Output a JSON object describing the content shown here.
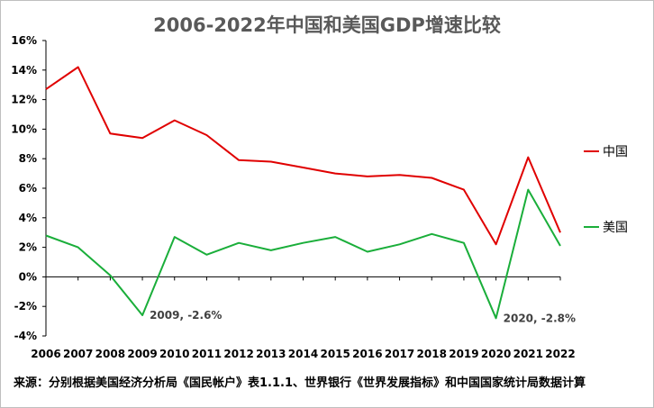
{
  "chart_data": {
    "type": "line",
    "title": "2006-2022年中国和美国GDP增速比较",
    "xlabel": "",
    "ylabel": "",
    "categories": [
      "2006",
      "2007",
      "2008",
      "2009",
      "2010",
      "2011",
      "2012",
      "2013",
      "2014",
      "2015",
      "2016",
      "2017",
      "2018",
      "2019",
      "2020",
      "2021",
      "2022"
    ],
    "ylim": [
      -4,
      16
    ],
    "yticks": [
      "16%",
      "14%",
      "12%",
      "10%",
      "8%",
      "6%",
      "4%",
      "2%",
      "0%",
      "-2%",
      "-4%"
    ],
    "series": [
      {
        "name": "中国",
        "color": "#e00000",
        "values": [
          12.7,
          14.2,
          9.7,
          9.4,
          10.6,
          9.6,
          7.9,
          7.8,
          7.4,
          7.0,
          6.8,
          6.9,
          6.7,
          5.9,
          2.2,
          8.1,
          3.0
        ]
      },
      {
        "name": "美国",
        "color": "#1aae3a",
        "values": [
          2.8,
          2.0,
          0.1,
          -2.6,
          2.7,
          1.5,
          2.3,
          1.8,
          2.3,
          2.7,
          1.7,
          2.2,
          2.9,
          2.3,
          -2.8,
          5.9,
          2.1
        ]
      }
    ],
    "annotations": [
      {
        "text": "2009, -2.6%",
        "category": "2009",
        "value": -2.6
      },
      {
        "text": "2020, -2.8%",
        "category": "2020",
        "value": -2.8
      }
    ],
    "legend": "right",
    "grid": false
  },
  "source_note": "来源：分别根据美国经济分析局《国民帐户》表1.1.1、世界银行《世界发展指标》和中国国家统计局数据计算"
}
